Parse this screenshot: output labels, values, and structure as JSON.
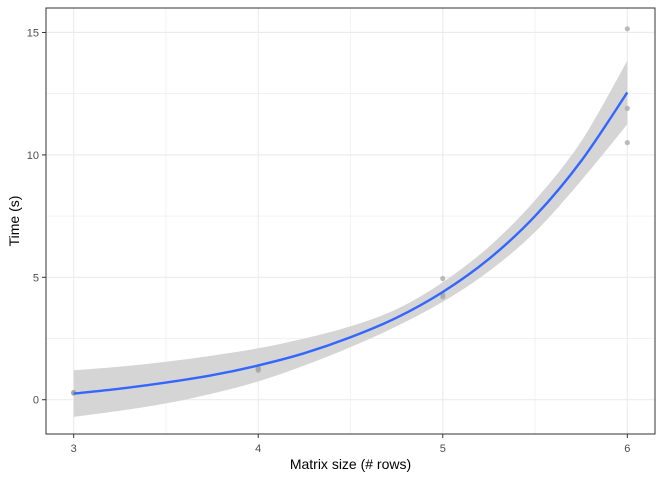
{
  "chart_data": {
    "type": "scatter",
    "title": "",
    "xlabel": "Matrix size (# rows)",
    "ylabel": "Time (s)",
    "xlim": [
      2.85,
      6.15
    ],
    "ylim": [
      -1.4,
      16.0
    ],
    "x_ticks": [
      3,
      4,
      5,
      6
    ],
    "x_tick_labels": [
      "3",
      "4",
      "5",
      "6"
    ],
    "y_ticks": [
      0,
      5,
      10,
      15
    ],
    "y_tick_labels": [
      "0",
      "5",
      "10",
      "15"
    ],
    "grid": true,
    "legend": "none",
    "points": {
      "x": [
        3,
        3,
        3,
        4,
        4,
        4,
        5,
        5,
        5,
        6,
        6,
        6
      ],
      "y": [
        0.28,
        0.3,
        0.27,
        1.2,
        1.3,
        1.25,
        4.2,
        4.3,
        4.95,
        15.15,
        11.9,
        10.5
      ]
    },
    "trend": {
      "x": [
        3.0,
        3.25,
        3.5,
        3.75,
        4.0,
        4.25,
        4.5,
        4.75,
        5.0,
        5.25,
        5.5,
        5.75,
        6.0
      ],
      "y": [
        0.25,
        0.45,
        0.7,
        1.0,
        1.4,
        1.9,
        2.55,
        3.35,
        4.4,
        5.75,
        7.5,
        9.75,
        12.55
      ],
      "lower": [
        -0.7,
        -0.45,
        -0.15,
        0.25,
        0.75,
        1.4,
        2.15,
        3.0,
        4.0,
        5.25,
        6.85,
        8.95,
        11.25
      ],
      "upper": [
        1.2,
        1.35,
        1.55,
        1.8,
        2.1,
        2.5,
        3.0,
        3.7,
        4.8,
        6.25,
        8.15,
        10.55,
        13.85
      ]
    },
    "colors": {
      "trend_line": "#3366ff",
      "ribbon": "#d3d3d3",
      "points": "#a6a6a6",
      "grid": "#ebebeb",
      "panel_border": "#333333"
    }
  }
}
